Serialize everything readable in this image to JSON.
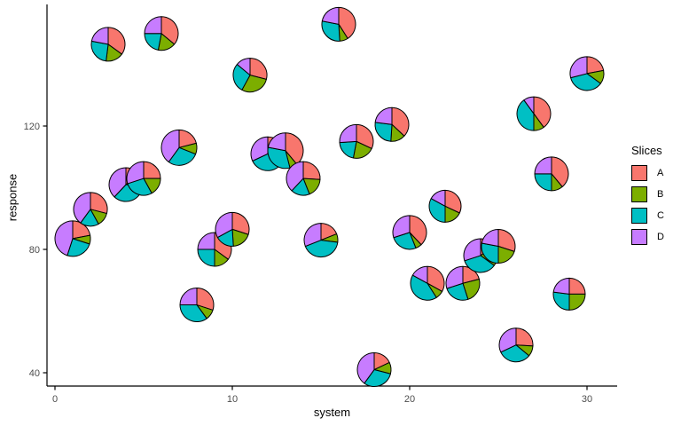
{
  "chart_data": {
    "type": "scatter-pie",
    "title": "",
    "xlabel": "system",
    "ylabel": "response",
    "x_ticks": [
      0,
      10,
      20,
      30
    ],
    "y_ticks": [
      40,
      80,
      120
    ],
    "xlim": [
      0,
      31.7
    ],
    "ylim": [
      37,
      155
    ],
    "grid": "off",
    "background": "#ffffff",
    "axis_color": "#000000",
    "tick_label_color": "#4d4d4d",
    "legend": {
      "title": "Slices",
      "position": "right",
      "entries": [
        {
          "label": "A",
          "color": "#F8766D"
        },
        {
          "label": "B",
          "color": "#7CAE00"
        },
        {
          "label": "C",
          "color": "#00BFC4"
        },
        {
          "label": "D",
          "color": "#C77CFF"
        }
      ]
    },
    "points": [
      {
        "x": 1,
        "y": 83.5,
        "r": 20,
        "slices": [
          22,
          8,
          25,
          45
        ]
      },
      {
        "x": 2,
        "y": 93,
        "r": 19,
        "slices": [
          29,
          13,
          18,
          40
        ]
      },
      {
        "x": 3,
        "y": 146.5,
        "r": 19,
        "slices": [
          35,
          17,
          26,
          22
        ]
      },
      {
        "x": 4,
        "y": 101,
        "r": 19,
        "slices": [
          15,
          12,
          35,
          38
        ]
      },
      {
        "x": 5,
        "y": 103,
        "r": 19,
        "slices": [
          25,
          17,
          28,
          30
        ]
      },
      {
        "x": 6,
        "y": 150,
        "r": 19,
        "slices": [
          36,
          17,
          22,
          25
        ]
      },
      {
        "x": 7,
        "y": 113,
        "r": 20,
        "slices": [
          21,
          10,
          29,
          40
        ]
      },
      {
        "x": 8,
        "y": 62,
        "r": 19,
        "slices": [
          30,
          10,
          35,
          25
        ]
      },
      {
        "x": 9,
        "y": 80,
        "r": 19,
        "slices": [
          35,
          15,
          25,
          25
        ]
      },
      {
        "x": 10,
        "y": 86.5,
        "r": 19,
        "slices": [
          30,
          19,
          18,
          33
        ]
      },
      {
        "x": 11,
        "y": 136.5,
        "r": 19,
        "slices": [
          29,
          29,
          28,
          14
        ]
      },
      {
        "x": 12,
        "y": 111,
        "r": 19,
        "slices": [
          18,
          11,
          39,
          32
        ]
      },
      {
        "x": 13,
        "y": 112,
        "r": 20,
        "slices": [
          39,
          7,
          32,
          22
        ]
      },
      {
        "x": 14,
        "y": 103,
        "r": 19,
        "slices": [
          26,
          18,
          18,
          38
        ]
      },
      {
        "x": 15,
        "y": 83,
        "r": 19,
        "slices": [
          19,
          8,
          42,
          31
        ]
      },
      {
        "x": 16,
        "y": 153,
        "r": 19,
        "slices": [
          41,
          8,
          29,
          22
        ]
      },
      {
        "x": 17,
        "y": 115,
        "r": 19,
        "slices": [
          32,
          21,
          21,
          26
        ]
      },
      {
        "x": 18,
        "y": 41,
        "r": 19,
        "slices": [
          18,
          11,
          31,
          40
        ]
      },
      {
        "x": 19,
        "y": 120.5,
        "r": 19,
        "slices": [
          37,
          14,
          26,
          23
        ]
      },
      {
        "x": 20,
        "y": 85.5,
        "r": 19,
        "slices": [
          38,
          6,
          26,
          30
        ]
      },
      {
        "x": 21,
        "y": 69,
        "r": 19,
        "slices": [
          33,
          8,
          42,
          17
        ]
      },
      {
        "x": 22,
        "y": 94,
        "r": 18,
        "slices": [
          32,
          18,
          33,
          17
        ]
      },
      {
        "x": 23,
        "y": 69,
        "r": 19,
        "slices": [
          21,
          24,
          25,
          30
        ]
      },
      {
        "x": 24,
        "y": 78,
        "r": 19,
        "slices": [
          15,
          20,
          35,
          30
        ]
      },
      {
        "x": 25,
        "y": 81,
        "r": 19,
        "slices": [
          30,
          20,
          28,
          22
        ]
      },
      {
        "x": 26,
        "y": 49,
        "r": 19,
        "slices": [
          26,
          10,
          32,
          32
        ]
      },
      {
        "x": 27,
        "y": 124,
        "r": 19,
        "slices": [
          40,
          10,
          40,
          10
        ]
      },
      {
        "x": 28,
        "y": 104.5,
        "r": 19,
        "slices": [
          39,
          11,
          25,
          25
        ]
      },
      {
        "x": 29,
        "y": 65.5,
        "r": 18,
        "slices": [
          25,
          25,
          27,
          23
        ]
      },
      {
        "x": 30,
        "y": 137,
        "r": 19,
        "slices": [
          22,
          13,
          36,
          29
        ]
      }
    ]
  }
}
